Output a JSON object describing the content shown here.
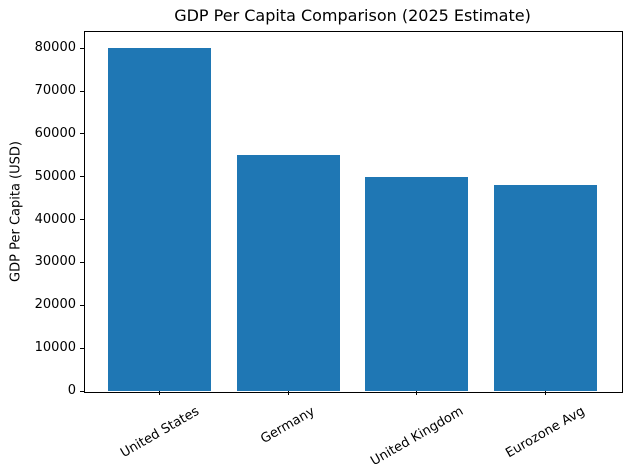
{
  "chart_data": {
    "type": "bar",
    "title": "GDP Per Capita Comparison (2025 Estimate)",
    "xlabel": "",
    "ylabel": "GDP Per Capita (USD)",
    "categories": [
      "United States",
      "Germany",
      "United Kingdom",
      "Eurozone Avg"
    ],
    "values": [
      80000,
      55000,
      50000,
      48000
    ],
    "yticks": [
      0,
      10000,
      20000,
      30000,
      40000,
      50000,
      60000,
      70000,
      80000
    ],
    "ylim": [
      0,
      84000
    ],
    "bar_color": "#1f77b4",
    "x_tick_rotation_deg": 30,
    "grid": false,
    "legend": null,
    "spine_color": "#000000",
    "background_color": "#ffffff"
  }
}
